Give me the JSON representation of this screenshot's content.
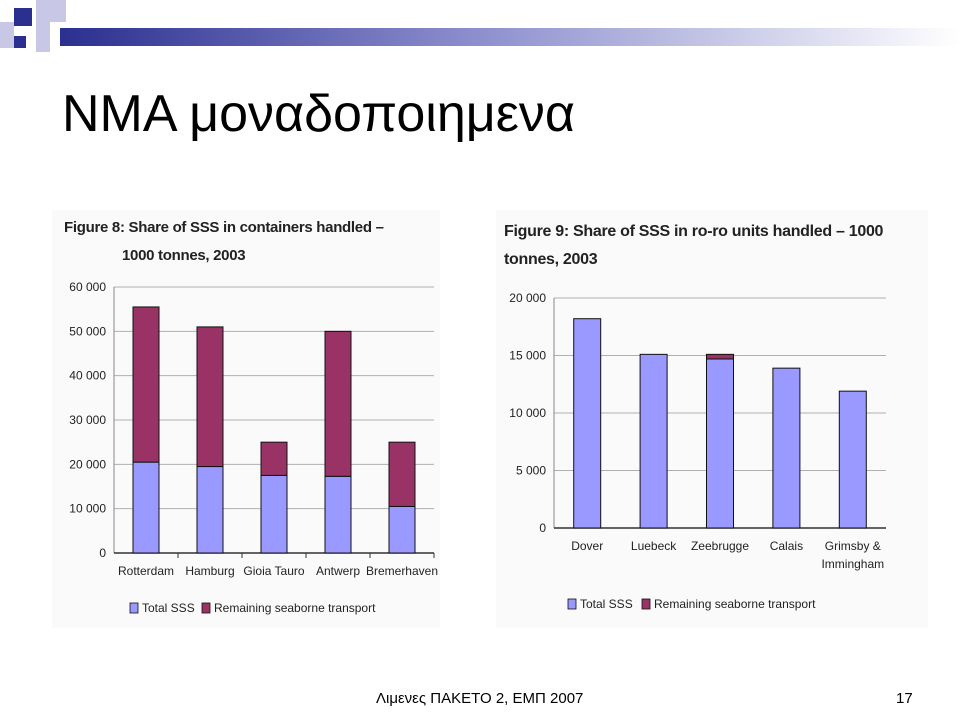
{
  "slide": {
    "title": "ΝΜΑ μοναδοποιημενα",
    "footer": "Λιμενες ΠΑΚΕΤΟ 2, ΕΜΠ 2007",
    "page": "17"
  },
  "colors": {
    "total_sss": "#9999ff",
    "remaining": "#993366",
    "grid": "#b0b0b0",
    "deco_dark": "#2b2f8f",
    "deco_light": "#c8c8e6"
  },
  "chart_data": [
    {
      "type": "bar",
      "stacked": true,
      "title_line1": "Figure 8: Share of SSS in containers handled –",
      "title_line2": "1000 tonnes, 2003",
      "categories": [
        "Rotterdam",
        "Hamburg",
        "Gioia Tauro",
        "Antwerp",
        "Bremerhaven"
      ],
      "series": [
        {
          "name": "Total SSS",
          "color": "#9999ff",
          "values": [
            20500,
            19500,
            17500,
            17300,
            10500
          ]
        },
        {
          "name": "Remaining seaborne transport",
          "color": "#993366",
          "values": [
            35000,
            31500,
            7500,
            32700,
            14500
          ]
        }
      ],
      "ylim": [
        0,
        60000
      ],
      "yticks": [
        0,
        10000,
        20000,
        30000,
        40000,
        50000,
        60000
      ],
      "ytick_labels": [
        "0",
        "10 000",
        "20 000",
        "30 000",
        "40 000",
        "50 000",
        "60 000"
      ],
      "grid": true,
      "legend_position": "bottom"
    },
    {
      "type": "bar",
      "stacked": true,
      "title_line1": "Figure 9: Share of SSS in ro-ro units handled – 1000",
      "title_line2": "tonnes, 2003",
      "categories": [
        [
          "Dover"
        ],
        [
          "Luebeck"
        ],
        [
          "Zeebrugge"
        ],
        [
          "Calais"
        ],
        [
          "Grimsby &",
          "Immingham"
        ]
      ],
      "series": [
        {
          "name": "Total SSS",
          "color": "#9999ff",
          "values": [
            18200,
            15100,
            14700,
            13900,
            11900
          ]
        },
        {
          "name": "Remaining seaborne transport",
          "color": "#993366",
          "values": [
            0,
            0,
            400,
            0,
            0
          ]
        }
      ],
      "ylim": [
        0,
        20000
      ],
      "yticks": [
        0,
        5000,
        10000,
        15000,
        20000
      ],
      "ytick_labels": [
        "0",
        "5 000",
        "10 000",
        "15 000",
        "20 000"
      ],
      "grid": true,
      "legend_position": "bottom"
    }
  ]
}
